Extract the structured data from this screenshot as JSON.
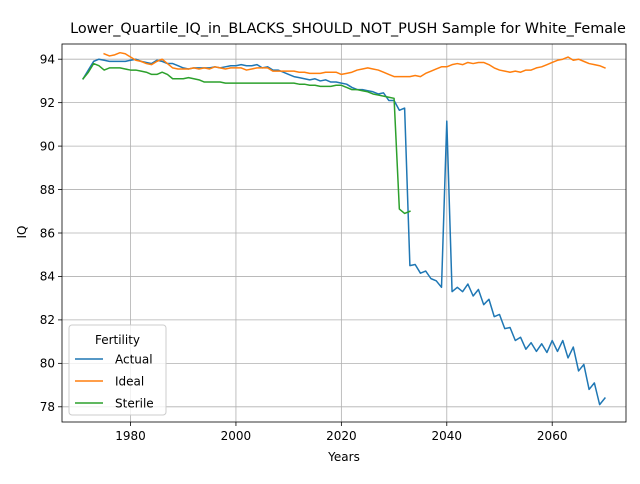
{
  "chart_data": {
    "type": "line",
    "title": "Lower_Quartile_IQ_in_BLACKS_SHOULD_NOT_PUSH Sample for White_Female",
    "xlabel": "Years",
    "ylabel": "IQ",
    "xlim": [
      1967,
      2074
    ],
    "ylim": [
      77.3,
      94.7
    ],
    "xticks": [
      1980,
      2000,
      2020,
      2040,
      2060
    ],
    "yticks": [
      78,
      80,
      82,
      84,
      86,
      88,
      90,
      92,
      94
    ],
    "grid": true,
    "legend": {
      "title": "Fertility",
      "placement": "lower-left"
    },
    "series": [
      {
        "name": "Actual",
        "color": "#1f77b4",
        "x": [
          1971,
          1972,
          1973,
          1974,
          1975,
          1976,
          1977,
          1978,
          1979,
          1980,
          1981,
          1982,
          1983,
          1984,
          1985,
          1986,
          1987,
          1988,
          1989,
          1990,
          1991,
          1992,
          1993,
          1994,
          1995,
          1996,
          1997,
          1998,
          1999,
          2000,
          2001,
          2002,
          2003,
          2004,
          2005,
          2006,
          2007,
          2008,
          2009,
          2010,
          2011,
          2012,
          2013,
          2014,
          2015,
          2016,
          2017,
          2018,
          2019,
          2020,
          2021,
          2022,
          2023,
          2024,
          2025,
          2026,
          2027,
          2028,
          2029,
          2030,
          2031,
          2032,
          2033,
          2034,
          2035,
          2036,
          2037,
          2038,
          2039,
          2040,
          2041,
          2042,
          2043,
          2044,
          2045,
          2046,
          2047,
          2048,
          2049,
          2050,
          2051,
          2052,
          2053,
          2054,
          2055,
          2056,
          2057,
          2058,
          2059,
          2060,
          2061,
          2062,
          2063,
          2064,
          2065,
          2066,
          2067,
          2068,
          2069,
          2070
        ],
        "y": [
          93.1,
          93.5,
          93.9,
          94.0,
          93.95,
          93.9,
          93.9,
          93.9,
          93.9,
          93.95,
          94.0,
          93.9,
          93.85,
          93.8,
          93.95,
          93.9,
          93.8,
          93.8,
          93.7,
          93.6,
          93.55,
          93.6,
          93.6,
          93.6,
          93.6,
          93.65,
          93.6,
          93.65,
          93.7,
          93.7,
          93.75,
          93.7,
          93.7,
          93.75,
          93.6,
          93.65,
          93.5,
          93.5,
          93.4,
          93.3,
          93.2,
          93.15,
          93.1,
          93.05,
          93.1,
          93.0,
          93.05,
          92.95,
          92.95,
          92.9,
          92.85,
          92.7,
          92.6,
          92.6,
          92.55,
          92.5,
          92.4,
          92.45,
          92.1,
          92.1,
          91.65,
          91.75,
          84.5,
          84.55,
          84.15,
          84.25,
          83.9,
          83.8,
          83.5,
          91.15,
          83.3,
          83.5,
          83.3,
          83.65,
          83.1,
          83.4,
          82.7,
          82.95,
          82.15,
          82.25,
          81.6,
          81.65,
          81.05,
          81.2,
          80.65,
          80.95,
          80.55,
          80.9,
          80.5,
          81.05,
          80.55,
          81.05,
          80.25,
          80.75,
          79.65,
          79.95,
          78.8,
          79.1,
          78.1,
          78.4
        ]
      },
      {
        "name": "Ideal",
        "color": "#ff7f0e",
        "x": [
          1975,
          1976,
          1977,
          1978,
          1979,
          1980,
          1981,
          1982,
          1983,
          1984,
          1985,
          1986,
          1987,
          1988,
          1989,
          1990,
          1991,
          1992,
          1993,
          1994,
          1995,
          1996,
          1997,
          1998,
          1999,
          2000,
          2001,
          2002,
          2003,
          2004,
          2005,
          2006,
          2007,
          2008,
          2009,
          2010,
          2011,
          2012,
          2013,
          2014,
          2015,
          2016,
          2017,
          2018,
          2019,
          2020,
          2021,
          2022,
          2023,
          2024,
          2025,
          2026,
          2027,
          2028,
          2029,
          2030,
          2031,
          2032,
          2033,
          2034,
          2035,
          2036,
          2037,
          2038,
          2039,
          2040,
          2041,
          2042,
          2043,
          2044,
          2045,
          2046,
          2047,
          2048,
          2049,
          2050,
          2051,
          2052,
          2053,
          2054,
          2055,
          2056,
          2057,
          2058,
          2059,
          2060,
          2061,
          2062,
          2063,
          2064,
          2065,
          2066,
          2067,
          2068,
          2069,
          2070
        ],
        "y": [
          94.25,
          94.15,
          94.2,
          94.3,
          94.25,
          94.1,
          93.95,
          93.9,
          93.8,
          93.75,
          93.9,
          94.0,
          93.8,
          93.6,
          93.55,
          93.55,
          93.55,
          93.6,
          93.55,
          93.6,
          93.55,
          93.65,
          93.6,
          93.55,
          93.6,
          93.6,
          93.6,
          93.5,
          93.55,
          93.6,
          93.6,
          93.6,
          93.45,
          93.45,
          93.45,
          93.45,
          93.45,
          93.4,
          93.4,
          93.35,
          93.35,
          93.35,
          93.4,
          93.4,
          93.4,
          93.3,
          93.35,
          93.4,
          93.5,
          93.55,
          93.6,
          93.55,
          93.5,
          93.4,
          93.3,
          93.2,
          93.2,
          93.2,
          93.2,
          93.25,
          93.2,
          93.35,
          93.45,
          93.55,
          93.65,
          93.65,
          93.75,
          93.8,
          93.75,
          93.85,
          93.8,
          93.85,
          93.85,
          93.75,
          93.6,
          93.5,
          93.45,
          93.4,
          93.45,
          93.4,
          93.5,
          93.5,
          93.6,
          93.65,
          93.75,
          93.85,
          93.95,
          94.0,
          94.1,
          93.95,
          94.0,
          93.9,
          93.8,
          93.75,
          93.7,
          93.6
        ]
      },
      {
        "name": "Sterile",
        "color": "#2ca02c",
        "x": [
          1971,
          1972,
          1973,
          1974,
          1975,
          1976,
          1977,
          1978,
          1979,
          1980,
          1981,
          1982,
          1983,
          1984,
          1985,
          1986,
          1987,
          1988,
          1989,
          1990,
          1991,
          1992,
          1993,
          1994,
          1995,
          1996,
          1997,
          1998,
          1999,
          2000,
          2001,
          2002,
          2003,
          2004,
          2005,
          2006,
          2007,
          2008,
          2009,
          2010,
          2011,
          2012,
          2013,
          2014,
          2015,
          2016,
          2017,
          2018,
          2019,
          2020,
          2021,
          2022,
          2023,
          2024,
          2025,
          2026,
          2027,
          2028,
          2029,
          2030,
          2031,
          2032,
          2033
        ],
        "y": [
          93.1,
          93.4,
          93.8,
          93.7,
          93.5,
          93.6,
          93.6,
          93.6,
          93.55,
          93.5,
          93.5,
          93.45,
          93.4,
          93.3,
          93.3,
          93.4,
          93.3,
          93.1,
          93.1,
          93.1,
          93.15,
          93.1,
          93.05,
          92.95,
          92.95,
          92.95,
          92.95,
          92.9,
          92.9,
          92.9,
          92.9,
          92.9,
          92.9,
          92.9,
          92.9,
          92.9,
          92.9,
          92.9,
          92.9,
          92.9,
          92.9,
          92.85,
          92.85,
          92.8,
          92.8,
          92.75,
          92.75,
          92.75,
          92.8,
          92.8,
          92.7,
          92.6,
          92.6,
          92.55,
          92.5,
          92.4,
          92.35,
          92.3,
          92.25,
          92.2,
          87.1,
          86.9,
          87.0
        ]
      }
    ]
  }
}
